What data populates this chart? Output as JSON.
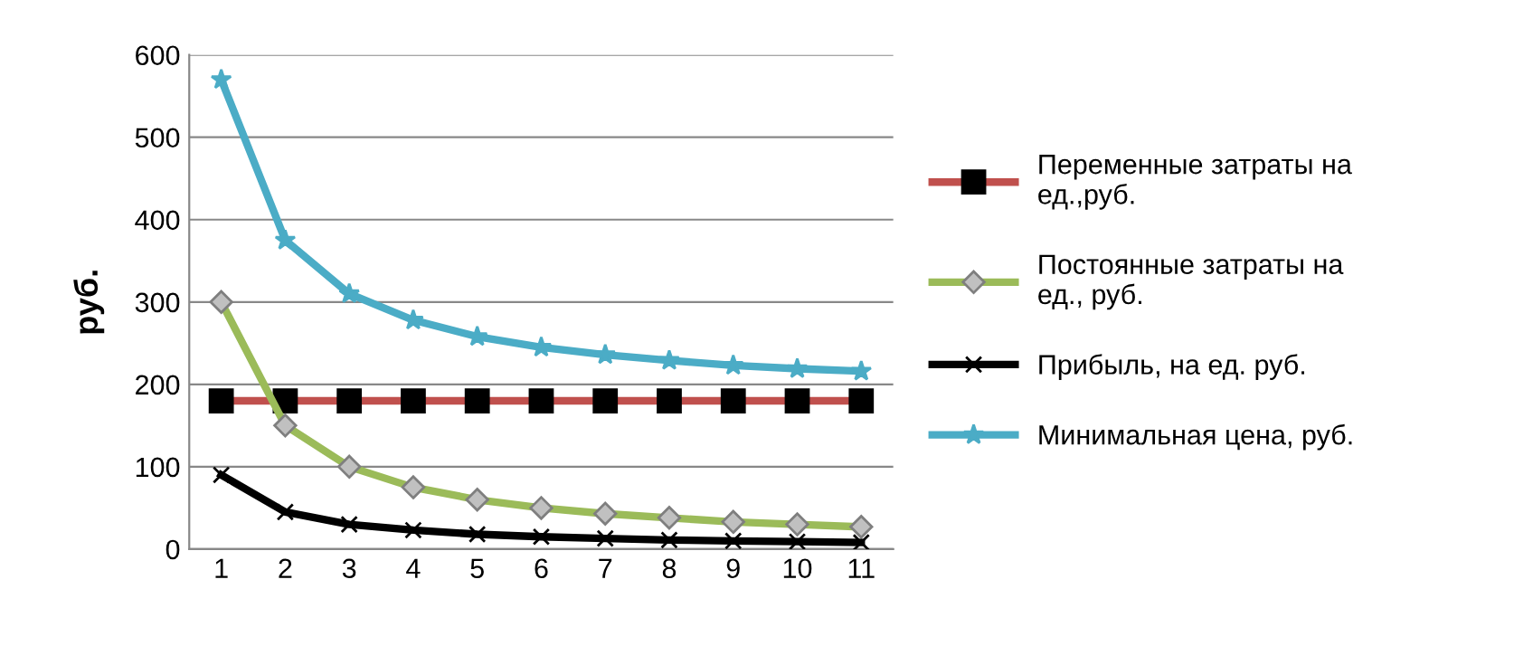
{
  "chart_data": {
    "type": "line",
    "ylabel": "руб.",
    "categories": [
      "1",
      "2",
      "3",
      "4",
      "5",
      "6",
      "7",
      "8",
      "9",
      "10",
      "11"
    ],
    "ylim": [
      0,
      600
    ],
    "yticks": [
      0,
      100,
      200,
      300,
      400,
      500,
      600
    ],
    "grid": "y",
    "legend": "right",
    "series": [
      {
        "name": "Переменные затраты на\nед.,руб.",
        "color": "#c0504d",
        "marker": "square",
        "values": [
          180,
          180,
          180,
          180,
          180,
          180,
          180,
          180,
          180,
          180,
          180
        ]
      },
      {
        "name": "Постоянные затраты на\nед., руб.",
        "color": "#9bbb59",
        "marker": "diamond",
        "values": [
          300,
          150,
          100,
          75,
          60,
          50,
          43,
          38,
          33,
          30,
          27
        ]
      },
      {
        "name": "Прибыль, на ед. руб.",
        "color": "#000000",
        "marker": "cross",
        "values": [
          90,
          45,
          30,
          23,
          18,
          15,
          13,
          11,
          10,
          9,
          8
        ]
      },
      {
        "name": "Минимальная цена, руб.",
        "color": "#4bacc6",
        "marker": "star",
        "values": [
          570,
          375,
          310,
          278,
          258,
          245,
          236,
          229,
          223,
          219,
          216
        ]
      }
    ]
  }
}
